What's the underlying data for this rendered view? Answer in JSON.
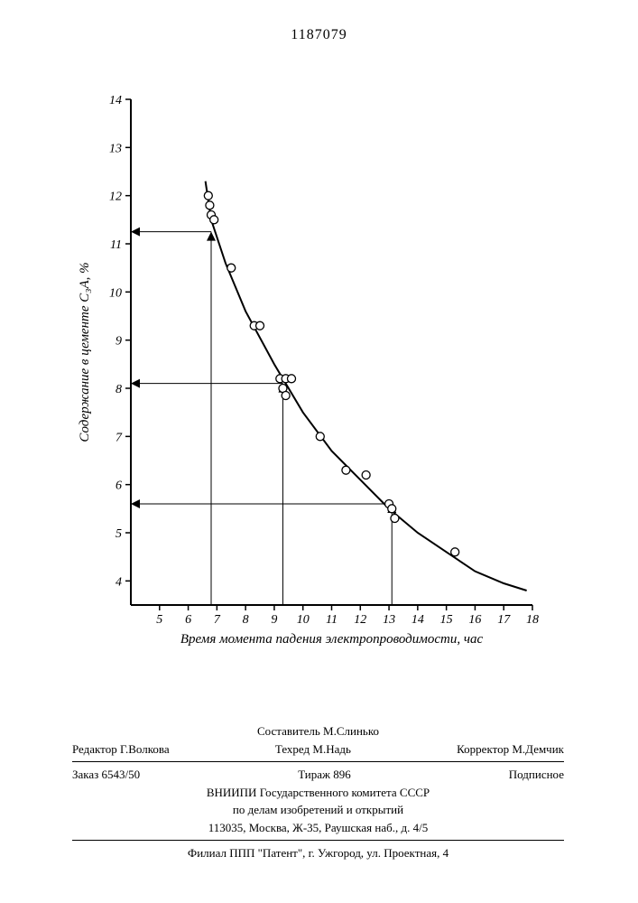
{
  "patent_number": "1187079",
  "chart": {
    "type": "scatter-with-curve",
    "xlabel": "Время момента падения электропроводимости, час",
    "ylabel": "Содержание в цементе C₃A, %",
    "xlim": [
      4,
      18
    ],
    "ylim": [
      3.5,
      14
    ],
    "xticks": [
      5,
      6,
      7,
      8,
      9,
      10,
      11,
      12,
      13,
      14,
      15,
      16,
      17,
      18
    ],
    "yticks": [
      4,
      5,
      6,
      7,
      8,
      9,
      10,
      11,
      12,
      13,
      14
    ],
    "background_color": "#ffffff",
    "axis_color": "#000000",
    "curve_color": "#000000",
    "curve_width": 2,
    "marker_radius": 4.5,
    "marker_stroke": "#000000",
    "marker_fill": "#ffffff",
    "marker_stroke_width": 1.3,
    "data_points": [
      {
        "x": 6.7,
        "y": 12.0
      },
      {
        "x": 6.8,
        "y": 11.6
      },
      {
        "x": 6.75,
        "y": 11.8
      },
      {
        "x": 6.9,
        "y": 11.5
      },
      {
        "x": 7.5,
        "y": 10.5
      },
      {
        "x": 8.3,
        "y": 9.3
      },
      {
        "x": 8.5,
        "y": 9.3
      },
      {
        "x": 9.2,
        "y": 8.2
      },
      {
        "x": 9.4,
        "y": 8.2
      },
      {
        "x": 9.6,
        "y": 8.2
      },
      {
        "x": 9.3,
        "y": 8.0
      },
      {
        "x": 9.4,
        "y": 7.85
      },
      {
        "x": 10.6,
        "y": 7.0
      },
      {
        "x": 11.5,
        "y": 6.3
      },
      {
        "x": 12.2,
        "y": 6.2
      },
      {
        "x": 13.0,
        "y": 5.6
      },
      {
        "x": 13.1,
        "y": 5.5
      },
      {
        "x": 13.2,
        "y": 5.3
      },
      {
        "x": 15.3,
        "y": 4.6
      }
    ],
    "curve_points": [
      {
        "x": 6.6,
        "y": 12.3
      },
      {
        "x": 6.8,
        "y": 11.5
      },
      {
        "x": 7.3,
        "y": 10.6
      },
      {
        "x": 8.0,
        "y": 9.6
      },
      {
        "x": 9.0,
        "y": 8.5
      },
      {
        "x": 10.0,
        "y": 7.5
      },
      {
        "x": 11.0,
        "y": 6.7
      },
      {
        "x": 12.0,
        "y": 6.1
      },
      {
        "x": 13.0,
        "y": 5.5
      },
      {
        "x": 14.0,
        "y": 5.0
      },
      {
        "x": 15.0,
        "y": 4.6
      },
      {
        "x": 16.0,
        "y": 4.2
      },
      {
        "x": 17.0,
        "y": 3.95
      },
      {
        "x": 17.8,
        "y": 3.8
      }
    ],
    "reference_lines": [
      {
        "x": 6.8,
        "y": 11.25
      },
      {
        "x": 9.3,
        "y": 8.1
      },
      {
        "x": 13.1,
        "y": 5.6
      }
    ],
    "reference_line_color": "#000000",
    "reference_line_width": 1,
    "arrow_size": 5
  },
  "footer": {
    "compiler": "Составитель М.Слинько",
    "editor": "Редактор Г.Волкова",
    "tech": "Техред М.Надь",
    "corrector": "Корректор М.Демчик",
    "order": "Заказ 6543/50",
    "print_run": "Тираж 896",
    "sub": "Подписное",
    "org1": "ВНИИПИ  Государственного комитета СССР",
    "org2": "по делам изобретений и открытий",
    "addr1": "113035, Москва, Ж-35, Раушская наб., д. 4/5",
    "branch": "Филиал ППП \"Патент\", г. Ужгород, ул. Проектная, 4"
  }
}
